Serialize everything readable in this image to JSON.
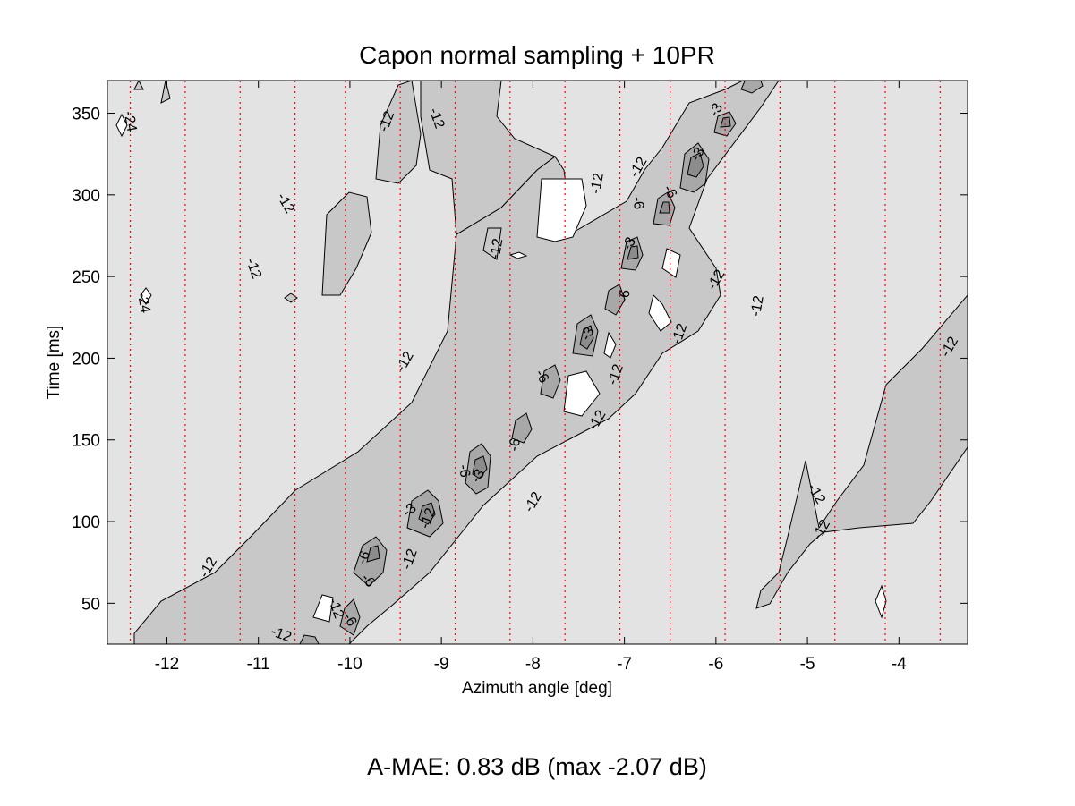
{
  "chart_data": {
    "type": "contour",
    "title": "Capon normal sampling + 10PR",
    "xlabel": "Azimuth angle [deg]",
    "ylabel": "Time [ms]",
    "xlim": [
      -12.65,
      -3.25
    ],
    "ylim": [
      25,
      370
    ],
    "xticks": [
      -12,
      -11,
      -10,
      -9,
      -8,
      -7,
      -6,
      -5,
      -4
    ],
    "yticks": [
      50,
      100,
      150,
      200,
      250,
      300,
      350
    ],
    "contour_levels": [
      -24,
      -12,
      -6,
      -3
    ],
    "grid": "vertical dotted red lines",
    "grid_x": [
      -12.4,
      -11.8,
      -11.2,
      -10.6,
      -10.05,
      -9.45,
      -8.85,
      -8.25,
      -7.65,
      -7.05,
      -6.5,
      -5.9,
      -5.3,
      -4.7,
      -4.15,
      -3.55
    ],
    "contour_labels": [
      {
        "text": "-12",
        "x": -11.55,
        "y": 72,
        "rot": -60
      },
      {
        "text": "-12",
        "x": -9.4,
        "y": 198,
        "rot": -60
      },
      {
        "text": "-12",
        "x": -8.0,
        "y": 112,
        "rot": -60
      },
      {
        "text": "-12",
        "x": -9.05,
        "y": 347,
        "rot": 70
      },
      {
        "text": "-12",
        "x": -9.6,
        "y": 345,
        "rot": -70
      },
      {
        "text": "-12",
        "x": -10.7,
        "y": 295,
        "rot": 60
      },
      {
        "text": "-12",
        "x": -11.05,
        "y": 255,
        "rot": 70
      },
      {
        "text": "-12",
        "x": -8.4,
        "y": 267,
        "rot": -80
      },
      {
        "text": "-12",
        "x": -7.3,
        "y": 307,
        "rot": -80
      },
      {
        "text": "-12",
        "x": -6.85,
        "y": 317,
        "rot": -60
      },
      {
        "text": "-12",
        "x": -6.4,
        "y": 215,
        "rot": -70
      },
      {
        "text": "-12",
        "x": -6.0,
        "y": 248,
        "rot": -60
      },
      {
        "text": "-12",
        "x": -5.55,
        "y": 232,
        "rot": -80
      },
      {
        "text": "-12",
        "x": -7.1,
        "y": 190,
        "rot": -70
      },
      {
        "text": "-12",
        "x": -7.3,
        "y": 162,
        "rot": -60
      },
      {
        "text": "-12",
        "x": -3.45,
        "y": 207,
        "rot": -60
      },
      {
        "text": "-12",
        "x": -4.9,
        "y": 117,
        "rot": 60
      },
      {
        "text": "-12",
        "x": -4.85,
        "y": 95,
        "rot": -60
      },
      {
        "text": "-12",
        "x": -9.35,
        "y": 77,
        "rot": -70
      },
      {
        "text": "-12",
        "x": -10.15,
        "y": 47,
        "rot": 70
      },
      {
        "text": "-12",
        "x": -10.75,
        "y": 31,
        "rot": 20
      },
      {
        "text": "-12",
        "x": -9.15,
        "y": 102,
        "rot": -70
      },
      {
        "text": "-24",
        "x": -12.4,
        "y": 345,
        "rot": 80
      },
      {
        "text": "-24",
        "x": -12.25,
        "y": 234,
        "rot": 80
      },
      {
        "text": "-6",
        "x": -9.85,
        "y": 78,
        "rot": -70
      },
      {
        "text": "-6",
        "x": -9.8,
        "y": 64,
        "rot": 50
      },
      {
        "text": "-6",
        "x": -10.0,
        "y": 40,
        "rot": 60
      },
      {
        "text": "-6",
        "x": -8.75,
        "y": 131,
        "rot": 80
      },
      {
        "text": "-6",
        "x": -8.2,
        "y": 147,
        "rot": -80
      },
      {
        "text": "-6",
        "x": -7.9,
        "y": 189,
        "rot": 60
      },
      {
        "text": "-6",
        "x": -7.0,
        "y": 238,
        "rot": -80
      },
      {
        "text": "-6",
        "x": -6.85,
        "y": 295,
        "rot": 80
      },
      {
        "text": "-6",
        "x": -6.5,
        "y": 302,
        "rot": 60
      },
      {
        "text": "-3",
        "x": -8.6,
        "y": 128,
        "rot": -60
      },
      {
        "text": "-3",
        "x": -9.35,
        "y": 107,
        "rot": -40
      },
      {
        "text": "-3",
        "x": -7.4,
        "y": 215,
        "rot": -60
      },
      {
        "text": "-3",
        "x": -6.95,
        "y": 270,
        "rot": -60
      },
      {
        "text": "-3",
        "x": -6.2,
        "y": 325,
        "rot": -60
      },
      {
        "text": "-3",
        "x": -6.0,
        "y": 352,
        "rot": -60
      }
    ]
  },
  "footer": "A-MAE: 0.83 dB (max -2.07 dB)"
}
